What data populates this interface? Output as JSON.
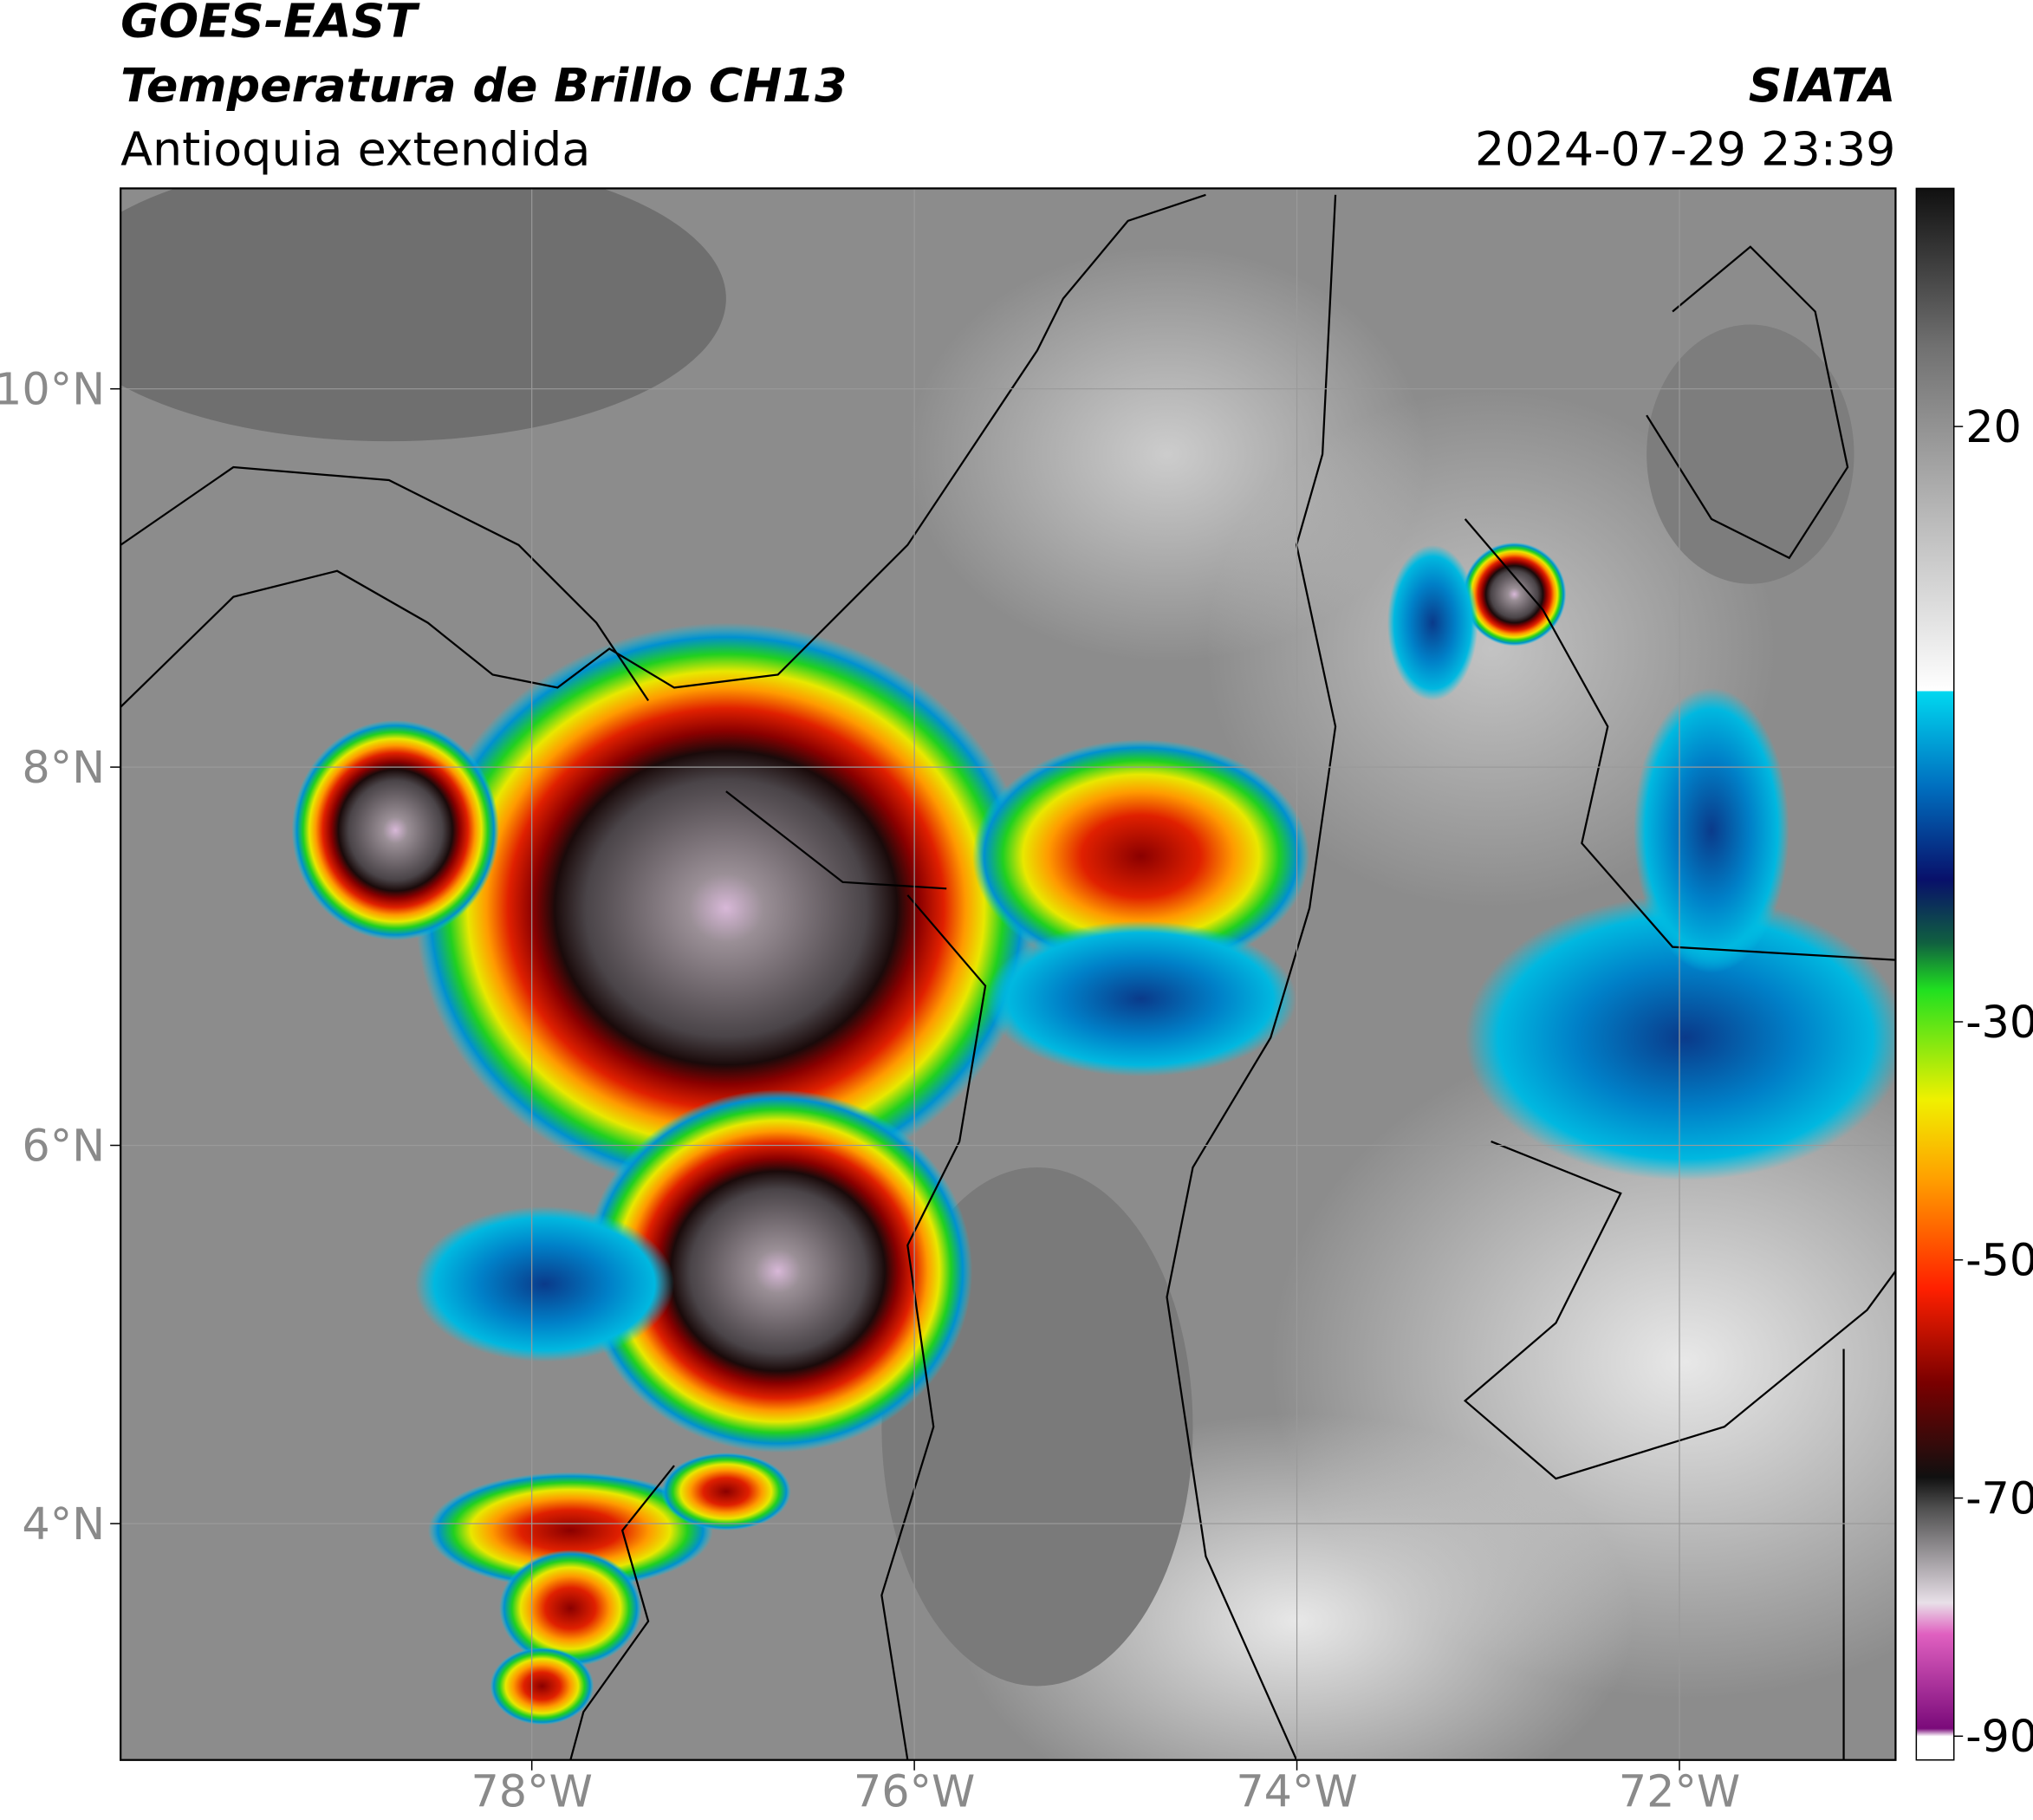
{
  "header": {
    "line1": "GOES-EAST",
    "line2": "Temperatura de Brillo CH13",
    "line3": "Antioquia extendida",
    "source": "SIATA",
    "datetime": "2024-07-29 23:39"
  },
  "map": {
    "lon_range": [
      -80.15,
      -70.87
    ],
    "lat_range": [
      2.75,
      11.06
    ],
    "lon_ticks": [
      {
        "value": -78,
        "label": "78°W"
      },
      {
        "value": -76,
        "label": "76°W"
      },
      {
        "value": -74,
        "label": "74°W"
      },
      {
        "value": -72,
        "label": "72°W"
      }
    ],
    "lat_ticks": [
      {
        "value": 4,
        "label": "4°N"
      },
      {
        "value": 6,
        "label": "6°N"
      },
      {
        "value": 8,
        "label": "8°N"
      },
      {
        "value": 10,
        "label": "10°N"
      }
    ],
    "grid": true
  },
  "colorbar": {
    "range": [
      -92,
      40
    ],
    "ticks": [
      20,
      -30,
      -50,
      -70,
      -90
    ]
  }
}
